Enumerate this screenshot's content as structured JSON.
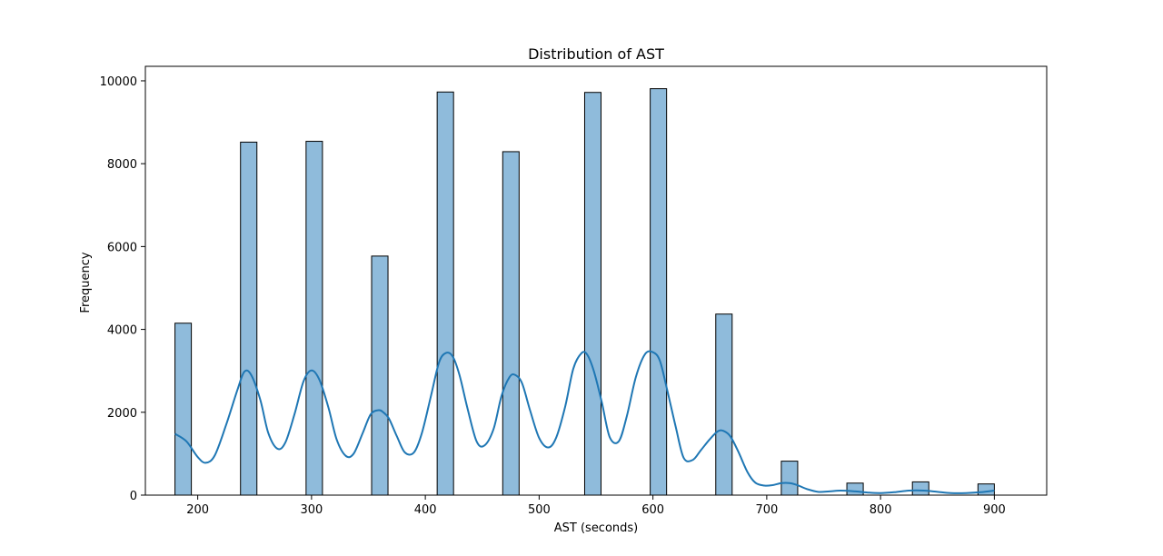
{
  "chart_data": {
    "type": "bar",
    "title": "Distribution of AST",
    "xlabel": "AST (seconds)",
    "ylabel": "Frequency",
    "xlim": [
      154,
      946
    ],
    "ylim": [
      0,
      10350
    ],
    "xticks": [
      200,
      300,
      400,
      500,
      600,
      700,
      800,
      900
    ],
    "yticks": [
      0,
      2000,
      4000,
      6000,
      8000,
      10000
    ],
    "grid": false,
    "bar_color": "#8fbbdb",
    "bar_edge_color": "#000000",
    "kde_color": "#1f77b4",
    "bins": [
      {
        "x0": 180,
        "x1": 194.4,
        "value": 4150
      },
      {
        "x0": 237.6,
        "x1": 252,
        "value": 8520
      },
      {
        "x0": 295.2,
        "x1": 309.6,
        "value": 8540
      },
      {
        "x0": 352.8,
        "x1": 367.2,
        "value": 5770
      },
      {
        "x0": 410.4,
        "x1": 424.8,
        "value": 9730
      },
      {
        "x0": 468,
        "x1": 482.4,
        "value": 8290
      },
      {
        "x0": 540,
        "x1": 554.4,
        "value": 9720
      },
      {
        "x0": 597.6,
        "x1": 612,
        "value": 9810
      },
      {
        "x0": 655.2,
        "x1": 669.6,
        "value": 4370
      },
      {
        "x0": 712.8,
        "x1": 727.2,
        "value": 820
      },
      {
        "x0": 770.4,
        "x1": 784.8,
        "value": 290
      },
      {
        "x0": 828,
        "x1": 842.4,
        "value": 320
      },
      {
        "x0": 885.6,
        "x1": 900,
        "value": 270
      }
    ],
    "kde": {
      "x": [
        180,
        190,
        200,
        207,
        215,
        225,
        235,
        241,
        247,
        255,
        262,
        270,
        277,
        285,
        293,
        300,
        307,
        315,
        322,
        330,
        337,
        345,
        352,
        359,
        363,
        368,
        375,
        382,
        390,
        397,
        405,
        412,
        418,
        424,
        430,
        437,
        445,
        452,
        460,
        467,
        474,
        479,
        485,
        492,
        500,
        508,
        515,
        523,
        530,
        537,
        542,
        548,
        555,
        562,
        570,
        577,
        585,
        593,
        600,
        606,
        612,
        620,
        627,
        635,
        642,
        650,
        657,
        662,
        668,
        675,
        683,
        690,
        698,
        705,
        713,
        720,
        727,
        735,
        745,
        755,
        765,
        778,
        790,
        800,
        812,
        825,
        838,
        850,
        862,
        875,
        888,
        900
      ],
      "y": [
        1480,
        1300,
        920,
        780,
        960,
        1700,
        2550,
        2980,
        2900,
        2300,
        1500,
        1120,
        1270,
        1950,
        2750,
        3010,
        2780,
        2100,
        1350,
        950,
        1000,
        1500,
        1950,
        2050,
        2000,
        1850,
        1420,
        1030,
        1030,
        1500,
        2400,
        3200,
        3430,
        3350,
        2900,
        2100,
        1300,
        1200,
        1600,
        2400,
        2850,
        2900,
        2700,
        2050,
        1380,
        1150,
        1390,
        2150,
        3050,
        3420,
        3400,
        3000,
        2250,
        1400,
        1300,
        1900,
        2850,
        3400,
        3450,
        3250,
        2600,
        1650,
        900,
        850,
        1080,
        1350,
        1540,
        1550,
        1420,
        1050,
        560,
        300,
        230,
        240,
        290,
        290,
        240,
        150,
        80,
        90,
        110,
        90,
        60,
        50,
        70,
        110,
        110,
        80,
        50,
        50,
        70,
        110
      ]
    }
  }
}
